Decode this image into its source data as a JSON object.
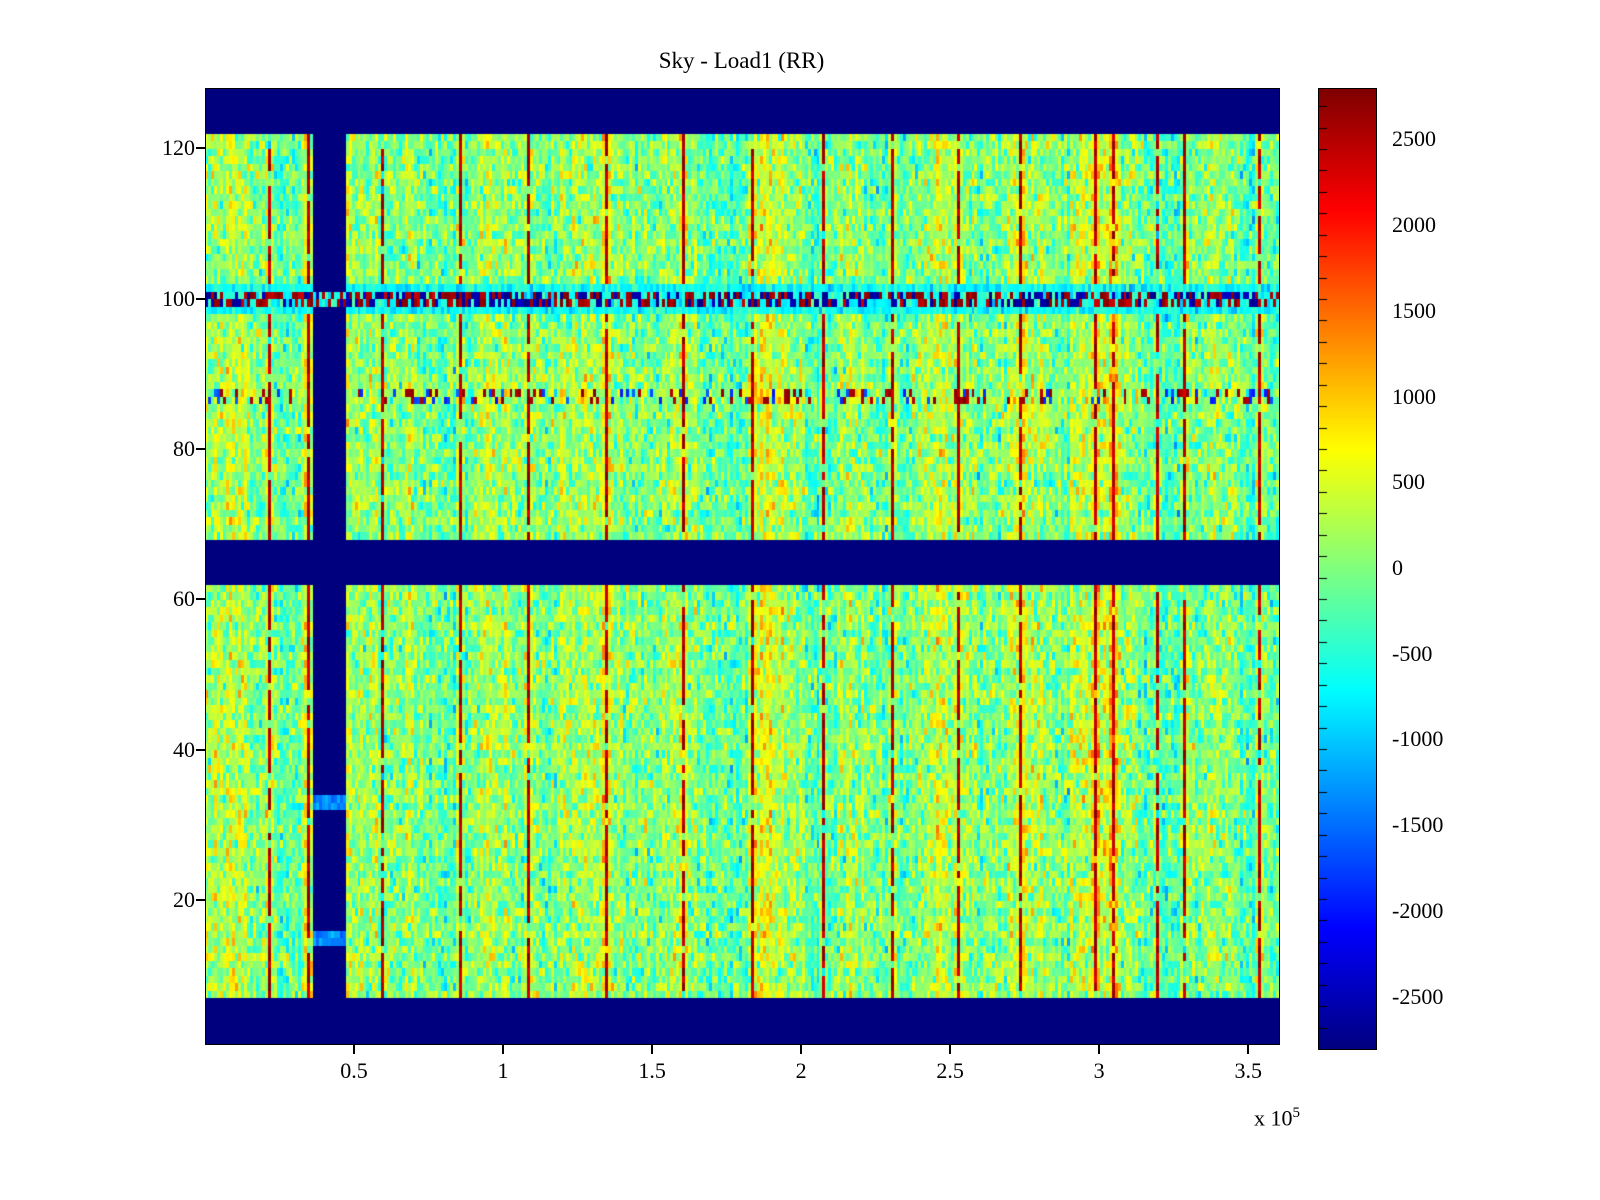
{
  "figure": {
    "title": "Sky - Load1 (RR)",
    "x_axis": {
      "tick_values": [
        50000,
        100000,
        150000,
        200000,
        250000,
        300000,
        350000
      ],
      "tick_labels": [
        "0.5",
        "1",
        "1.5",
        "2",
        "2.5",
        "3",
        "3.5"
      ],
      "scale_label": "x 10",
      "scale_exponent": "5",
      "range": [
        0,
        360000
      ]
    },
    "y_axis": {
      "tick_values": [
        20,
        40,
        60,
        80,
        100,
        120
      ],
      "tick_labels": [
        "20",
        "40",
        "60",
        "80",
        "100",
        "120"
      ],
      "range": [
        1,
        128
      ]
    },
    "colorbar": {
      "tick_values": [
        2500,
        2000,
        1500,
        1000,
        500,
        0,
        -500,
        -1000,
        -1500,
        -2000,
        -2500
      ],
      "tick_labels": [
        "2500",
        "2000",
        "1500",
        "1000",
        "500",
        "0",
        "-500",
        "-1000",
        "-1500",
        "-2000",
        "-2500"
      ],
      "minor_tick_step": 125,
      "range": [
        -2800,
        2800
      ]
    }
  },
  "chart_data": {
    "type": "heatmap",
    "title": "Sky - Load1 (RR)",
    "x_range": [
      0,
      360000
    ],
    "y_range": [
      1,
      128
    ],
    "n_cols": 360,
    "n_rows": 127,
    "value_range": [
      -2800,
      2800
    ],
    "colormap": "jet",
    "colorbar_ticks": [
      -2500,
      -2000,
      -1500,
      -1000,
      -500,
      0,
      500,
      1000,
      1500,
      2000,
      2500
    ],
    "background_noise": {
      "mean": 0,
      "std": 380,
      "column_variation": 420,
      "row_variation": 150
    },
    "masked_navy_regions": [
      {
        "kind": "rows",
        "y_from": 122.5,
        "y_to": 128,
        "note": "top blank band"
      },
      {
        "kind": "rows",
        "y_from": 1,
        "y_to": 7,
        "note": "bottom blank band"
      },
      {
        "kind": "rows",
        "y_from": 62.5,
        "y_to": 67.5,
        "note": "middle blank band"
      },
      {
        "kind": "cols",
        "x_from": 36000,
        "x_to": 46000,
        "note": "vertical blank band"
      }
    ],
    "vertical_band_breaks_y": [
      15,
      33
    ],
    "hot_red_columns_x": [
      21000,
      34000,
      59000,
      85000,
      108000,
      134000,
      160000,
      183000,
      207000,
      230000,
      252000,
      273000,
      298000,
      304000,
      319000,
      328000,
      353000
    ],
    "warm_orange_column_regions_x": [
      [
        47000,
        57000
      ],
      [
        186000,
        200000
      ],
      [
        290000,
        306000
      ]
    ],
    "anomaly_rows": [
      {
        "y": 100,
        "style": "extreme red/blue speckle with cyan halo rows at 99 and 101"
      },
      {
        "y": 87,
        "style": "sparse dark-red speckle"
      }
    ],
    "render_seed": 12345
  }
}
